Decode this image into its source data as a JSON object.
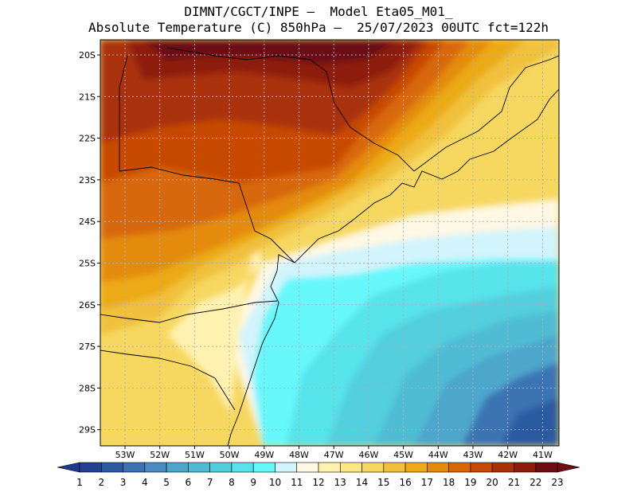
{
  "title_line1": "DIMNT/CGCT/INPE –  Model Eta05_M01_",
  "title_line2": "Absolute Temperature (C) 850hPa –  25/07/2023 00UTC fct=122h",
  "lat_labels": [
    "20S",
    "21S",
    "22S",
    "23S",
    "24S",
    "25S",
    "26S",
    "27S",
    "28S",
    "29S"
  ],
  "lon_labels": [
    "53W",
    "52W",
    "51W",
    "50W",
    "49W",
    "48W",
    "47W",
    "46W",
    "45W",
    "44W",
    "43W",
    "42W",
    "41W"
  ],
  "colorbar": {
    "labels": [
      "1",
      "2",
      "3",
      "4",
      "5",
      "6",
      "7",
      "8",
      "9",
      "10",
      "11",
      "12",
      "13",
      "14",
      "15",
      "16",
      "17",
      "18",
      "19",
      "20",
      "21",
      "22",
      "23"
    ],
    "colors": [
      "#23418e",
      "#2c5aa0",
      "#3b73b3",
      "#4a8bc2",
      "#4ea6cc",
      "#50bcd4",
      "#52cfdd",
      "#57e3ea",
      "#66f8fb",
      "#d2f4fc",
      "#fff8e4",
      "#fff2b0",
      "#fbe883",
      "#f6d760",
      "#f1c13c",
      "#ecaa17",
      "#e48b0c",
      "#d86707",
      "#c74906",
      "#a93107",
      "#8d1c0a",
      "#6b0d12"
    ],
    "under_color": "#1e3a8a",
    "over_color": "#6b0d12"
  },
  "map_layers": [
    "temperature-field",
    "gridlines",
    "coastline",
    "state-borders"
  ]
}
